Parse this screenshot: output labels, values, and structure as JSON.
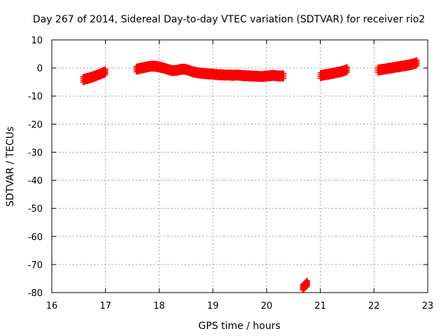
{
  "chart_data": {
    "type": "scatter",
    "title": "Day 267 of 2014, Sidereal Day-to-day VTEC variation (SDTVAR) for receiver rio2",
    "xlabel": "GPS time / hours",
    "ylabel": "SDTVAR / TECUs",
    "xlim": [
      16,
      23
    ],
    "ylim": [
      -80,
      10
    ],
    "xticks": [
      16,
      17,
      18,
      19,
      20,
      21,
      22,
      23
    ],
    "yticks": [
      10,
      0,
      -10,
      -20,
      -30,
      -40,
      -50,
      -60,
      -70,
      -80
    ],
    "grid": true,
    "color": "#ff0000",
    "marker": "plus",
    "series": [
      {
        "x": [
          16.58,
          16.62,
          16.66,
          16.7,
          16.74,
          16.78,
          16.82,
          16.86,
          16.9,
          16.94,
          16.98,
          17.0
        ],
        "y": [
          -4.2,
          -4.0,
          -3.8,
          -3.6,
          -3.4,
          -3.1,
          -2.8,
          -2.5,
          -2.2,
          -1.9,
          -1.6,
          -1.4
        ]
      },
      {
        "x": [
          17.57,
          17.62,
          17.67,
          17.72,
          17.77,
          17.82,
          17.87,
          17.92,
          17.97,
          18.02,
          18.07,
          18.12,
          18.17,
          18.22,
          18.27,
          18.32,
          18.37,
          18.42,
          18.47,
          18.52,
          18.57,
          18.62,
          18.67,
          18.72,
          18.77,
          18.82,
          18.87,
          18.92,
          18.97,
          19.02,
          19.07,
          19.12,
          19.17,
          19.22,
          19.27,
          19.32,
          19.37,
          19.42,
          19.47,
          19.52,
          19.57,
          19.62,
          19.67,
          19.72,
          19.77,
          19.82,
          19.87,
          19.92,
          19.97,
          20.02,
          20.07,
          20.12,
          20.17,
          20.22,
          20.27,
          20.32
        ],
        "y": [
          -0.5,
          -0.3,
          -0.1,
          0.1,
          0.3,
          0.5,
          0.6,
          0.6,
          0.4,
          0.2,
          0.0,
          -0.3,
          -0.6,
          -0.9,
          -1.0,
          -0.9,
          -0.7,
          -0.5,
          -0.5,
          -0.7,
          -1.0,
          -1.4,
          -1.6,
          -1.8,
          -1.9,
          -2.0,
          -2.1,
          -2.2,
          -2.2,
          -2.3,
          -2.4,
          -2.5,
          -2.5,
          -2.6,
          -2.6,
          -2.6,
          -2.7,
          -2.6,
          -2.6,
          -2.7,
          -2.8,
          -2.8,
          -2.9,
          -2.9,
          -3.0,
          -3.0,
          -3.1,
          -3.1,
          -3.0,
          -2.9,
          -2.8,
          -2.7,
          -2.8,
          -2.9,
          -2.9,
          -2.9
        ]
      },
      {
        "x": [
          20.67,
          20.7,
          20.73,
          20.76
        ],
        "y": [
          -78.3,
          -77.8,
          -77.2,
          -76.7
        ]
      },
      {
        "x": [
          21.0,
          21.05,
          21.1,
          21.15,
          21.2,
          21.25,
          21.3,
          21.35,
          21.4,
          21.45,
          21.5
        ],
        "y": [
          -2.8,
          -2.6,
          -2.4,
          -2.3,
          -2.1,
          -1.9,
          -1.7,
          -1.5,
          -1.3,
          -1.0,
          -0.6
        ]
      },
      {
        "x": [
          22.07,
          22.12,
          22.17,
          22.22,
          22.27,
          22.32,
          22.37,
          22.42,
          22.47,
          22.52,
          22.57,
          22.62,
          22.67,
          22.72,
          22.77,
          22.8
        ],
        "y": [
          -0.8,
          -0.7,
          -0.5,
          -0.4,
          -0.2,
          -0.1,
          0.1,
          0.3,
          0.4,
          0.6,
          0.7,
          0.9,
          1.1,
          1.3,
          1.6,
          1.8
        ]
      }
    ]
  }
}
